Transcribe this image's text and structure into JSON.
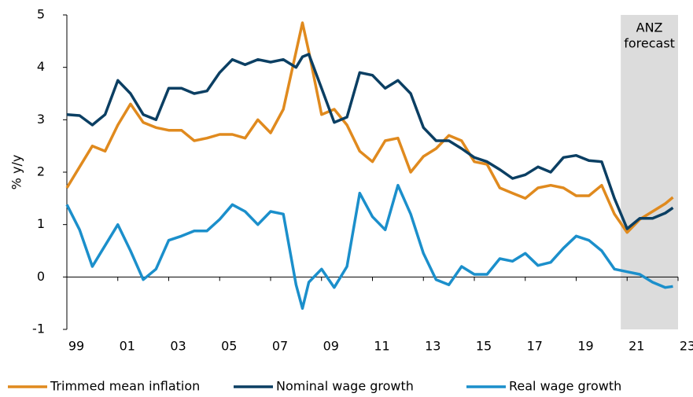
{
  "chart_data": {
    "type": "line",
    "x": [
      1999,
      1999.5,
      2000,
      2000.5,
      2001,
      2001.5,
      2002,
      2002.5,
      2003,
      2003.5,
      2004,
      2004.5,
      2005,
      2005.5,
      2006,
      2006.5,
      2007,
      2007.5,
      2008,
      2008.25,
      2008.5,
      2009,
      2009.5,
      2010,
      2010.5,
      2011,
      2011.5,
      2012,
      2012.5,
      2013,
      2013.5,
      2014,
      2014.5,
      2015,
      2015.5,
      2016,
      2016.5,
      2017,
      2017.5,
      2018,
      2018.5,
      2019,
      2019.5,
      2020,
      2020.5,
      2021,
      2021.5,
      2022,
      2022.5,
      2022.8
    ],
    "series": [
      {
        "name": "Trimmed mean inflation",
        "color": "#e08a1e",
        "values": [
          1.7,
          2.1,
          2.5,
          2.4,
          2.9,
          3.3,
          2.95,
          2.85,
          2.8,
          2.8,
          2.6,
          2.65,
          2.72,
          2.72,
          2.65,
          3.0,
          2.75,
          3.2,
          4.3,
          4.85,
          4.3,
          3.1,
          3.2,
          2.9,
          2.4,
          2.2,
          2.6,
          2.65,
          2.0,
          2.3,
          2.45,
          2.7,
          2.6,
          2.2,
          2.15,
          1.7,
          1.6,
          1.5,
          1.7,
          1.75,
          1.7,
          1.55,
          1.55,
          1.75,
          1.2,
          0.85,
          1.1,
          1.25,
          1.4,
          1.52
        ]
      },
      {
        "name": "Nominal wage growth",
        "color": "#0b3f63",
        "values": [
          3.1,
          3.08,
          2.9,
          3.1,
          3.75,
          3.5,
          3.1,
          3.0,
          3.6,
          3.6,
          3.5,
          3.55,
          3.9,
          4.15,
          4.05,
          4.15,
          4.1,
          4.15,
          4.0,
          4.2,
          4.25,
          3.6,
          2.95,
          3.05,
          3.9,
          3.85,
          3.6,
          3.75,
          3.5,
          2.85,
          2.6,
          2.6,
          2.45,
          2.28,
          2.2,
          2.05,
          1.88,
          1.95,
          2.1,
          2.0,
          2.28,
          2.32,
          2.22,
          2.2,
          1.5,
          0.92,
          1.12,
          1.12,
          1.22,
          1.32
        ]
      },
      {
        "name": "Real wage growth",
        "color": "#1b8fcb",
        "values": [
          1.38,
          0.9,
          0.2,
          0.6,
          1.0,
          0.5,
          -0.05,
          0.15,
          0.7,
          0.78,
          0.88,
          0.88,
          1.1,
          1.38,
          1.25,
          1.0,
          1.25,
          1.2,
          -0.15,
          -0.6,
          -0.1,
          0.15,
          -0.2,
          0.2,
          1.6,
          1.15,
          0.9,
          1.75,
          1.2,
          0.45,
          -0.05,
          -0.15,
          0.2,
          0.05,
          0.05,
          0.35,
          0.3,
          0.45,
          0.22,
          0.28,
          0.55,
          0.78,
          0.7,
          0.5,
          0.15,
          0.1,
          0.05,
          -0.1,
          -0.2,
          -0.18
        ]
      }
    ],
    "ylabel": "% y/y",
    "xlim": [
      1999,
      2023
    ],
    "xticks": [
      {
        "value": 1999,
        "label": "99"
      },
      {
        "value": 2001,
        "label": "01"
      },
      {
        "value": 2003,
        "label": "03"
      },
      {
        "value": 2005,
        "label": "05"
      },
      {
        "value": 2007,
        "label": "07"
      },
      {
        "value": 2009,
        "label": "09"
      },
      {
        "value": 2011,
        "label": "11"
      },
      {
        "value": 2013,
        "label": "13"
      },
      {
        "value": 2015,
        "label": "15"
      },
      {
        "value": 2017,
        "label": "17"
      },
      {
        "value": 2019,
        "label": "19"
      },
      {
        "value": 2021,
        "label": "21"
      },
      {
        "value": 2023,
        "label": "23"
      }
    ],
    "ylim": [
      -1,
      5
    ],
    "yticks": [
      -1,
      0,
      1,
      2,
      3,
      4,
      5
    ],
    "legend": "bottom",
    "shaded_region": {
      "x_range": [
        2020.75,
        2023
      ],
      "color": "#dcdcdc",
      "text": [
        "ANZ",
        "forecast"
      ]
    }
  }
}
